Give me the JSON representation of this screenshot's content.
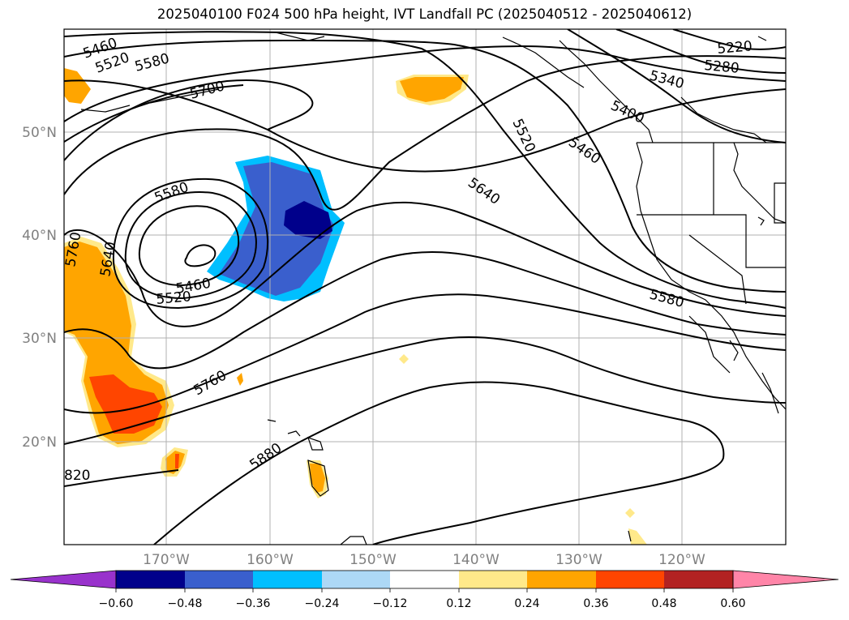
{
  "title": "2025040100 F024 500 hPa height, IVT Landfall PC (2025040512 - 2025040612)",
  "map": {
    "latitude_labels": [
      "50°N",
      "40°N",
      "30°N",
      "20°N"
    ],
    "longitude_labels": [
      "170°W",
      "160°W",
      "150°W",
      "140°W",
      "130°W",
      "120°W"
    ],
    "contour_labels": [
      "5460",
      "5520",
      "5580",
      "5700",
      "5220",
      "5280",
      "5340",
      "5400",
      "5520",
      "5460",
      "5640",
      "5580",
      "5640",
      "5760",
      "5580",
      "5460",
      "5520",
      "5760",
      "5880",
      "820"
    ],
    "colors": {
      "contour": "#000000",
      "coastline": "#000000",
      "gridline": "#b0b0b0"
    }
  },
  "colorbar": {
    "ticks": [
      "−0.60",
      "−0.48",
      "−0.36",
      "−0.24",
      "−0.12",
      "0.12",
      "0.24",
      "0.36",
      "0.48",
      "0.60"
    ],
    "colors": [
      "#9932cc",
      "#00008b",
      "#3a5fcd",
      "#00bfff",
      "#add8f6",
      "#ffffff",
      "#ffe98a",
      "#ffa500",
      "#ff4500",
      "#b22222",
      "#ff85a8"
    ]
  }
}
